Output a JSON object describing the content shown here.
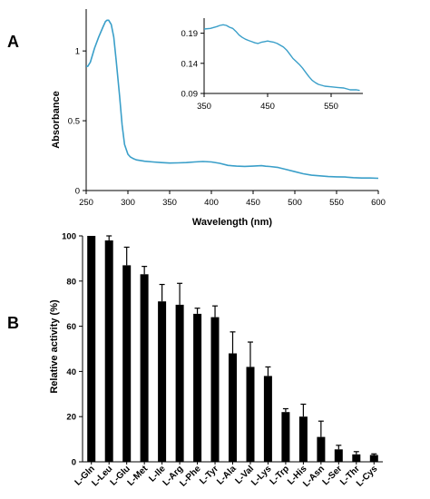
{
  "panels": [
    {
      "letter": "A"
    },
    {
      "letter": "B"
    }
  ],
  "chart_data": [
    {
      "panel": "A",
      "type": "line",
      "xlabel": "Wavelength (nm)",
      "ylabel": "Absorbance",
      "xlim": [
        250,
        600
      ],
      "ylim": [
        0,
        1.3
      ],
      "x_ticks": [
        250,
        300,
        350,
        400,
        450,
        500,
        550,
        600
      ],
      "y_ticks": [
        0,
        0.5,
        1
      ],
      "y_tick_labels": [
        "0",
        "0.5",
        "1"
      ],
      "color": "#3a9fc9",
      "x": [
        250,
        252,
        255,
        260,
        265,
        270,
        273,
        275,
        277,
        280,
        283,
        286,
        290,
        293,
        296,
        300,
        303,
        306,
        310,
        315,
        320,
        330,
        340,
        350,
        360,
        370,
        380,
        390,
        400,
        410,
        420,
        430,
        440,
        450,
        460,
        465,
        470,
        480,
        490,
        500,
        510,
        520,
        530,
        540,
        550,
        560,
        570,
        580,
        590,
        600
      ],
      "y": [
        0.89,
        0.89,
        0.92,
        1.02,
        1.1,
        1.17,
        1.21,
        1.22,
        1.22,
        1.19,
        1.1,
        0.93,
        0.68,
        0.47,
        0.33,
        0.26,
        0.24,
        0.23,
        0.22,
        0.215,
        0.21,
        0.205,
        0.2,
        0.197,
        0.198,
        0.2,
        0.205,
        0.208,
        0.205,
        0.195,
        0.18,
        0.175,
        0.173,
        0.175,
        0.178,
        0.174,
        0.172,
        0.165,
        0.15,
        0.135,
        0.12,
        0.11,
        0.105,
        0.1,
        0.098,
        0.097,
        0.092,
        0.09,
        0.09,
        0.088
      ]
    },
    {
      "panel": "A-inset",
      "type": "line",
      "xlim": [
        350,
        600
      ],
      "ylim": [
        0.09,
        0.215
      ],
      "x_ticks": [
        350,
        450,
        550
      ],
      "y_ticks": [
        0.09,
        0.14,
        0.19
      ],
      "y_tick_labels": [
        "0.09",
        "0.14",
        "0.19"
      ],
      "color": "#3a9fc9",
      "x": [
        350,
        360,
        370,
        375,
        380,
        385,
        390,
        395,
        400,
        405,
        410,
        415,
        420,
        425,
        430,
        435,
        440,
        445,
        450,
        455,
        460,
        465,
        470,
        475,
        480,
        485,
        490,
        495,
        500,
        505,
        510,
        515,
        520,
        525,
        530,
        540,
        550,
        560,
        570,
        580,
        590,
        595
      ],
      "y": [
        0.197,
        0.198,
        0.201,
        0.203,
        0.204,
        0.203,
        0.2,
        0.198,
        0.193,
        0.187,
        0.183,
        0.18,
        0.178,
        0.176,
        0.174,
        0.173,
        0.175,
        0.176,
        0.177,
        0.176,
        0.175,
        0.173,
        0.17,
        0.167,
        0.162,
        0.155,
        0.148,
        0.143,
        0.138,
        0.132,
        0.125,
        0.118,
        0.112,
        0.108,
        0.105,
        0.102,
        0.101,
        0.1,
        0.099,
        0.096,
        0.096,
        0.095
      ]
    },
    {
      "panel": "B",
      "type": "bar",
      "xlabel": "",
      "ylabel": "Relative activity (%)",
      "ylim": [
        0,
        100
      ],
      "y_ticks": [
        0,
        20,
        40,
        60,
        80,
        100
      ],
      "color": "#000000",
      "categories": [
        "L-Gln",
        "L-Leu",
        "L-Glu",
        "L-Met",
        "L-Ile",
        "L-Arg",
        "L-Phe",
        "L-Tyr",
        "L-Ala",
        "L-Val",
        "L-Lys",
        "L-Trp",
        "L-His",
        "L-Asn",
        "L-Ser",
        "L-Thr",
        "L-Cys"
      ],
      "values": [
        100,
        98,
        87,
        83,
        71,
        69.5,
        65.5,
        64,
        48,
        42,
        38,
        22,
        20,
        11,
        5.5,
        3.3,
        3
      ],
      "errors": [
        0,
        2,
        8,
        3.5,
        7.5,
        9.5,
        2.5,
        5,
        9.5,
        11,
        4,
        1.5,
        5.5,
        7,
        1.8,
        1.2,
        0.5
      ]
    }
  ]
}
